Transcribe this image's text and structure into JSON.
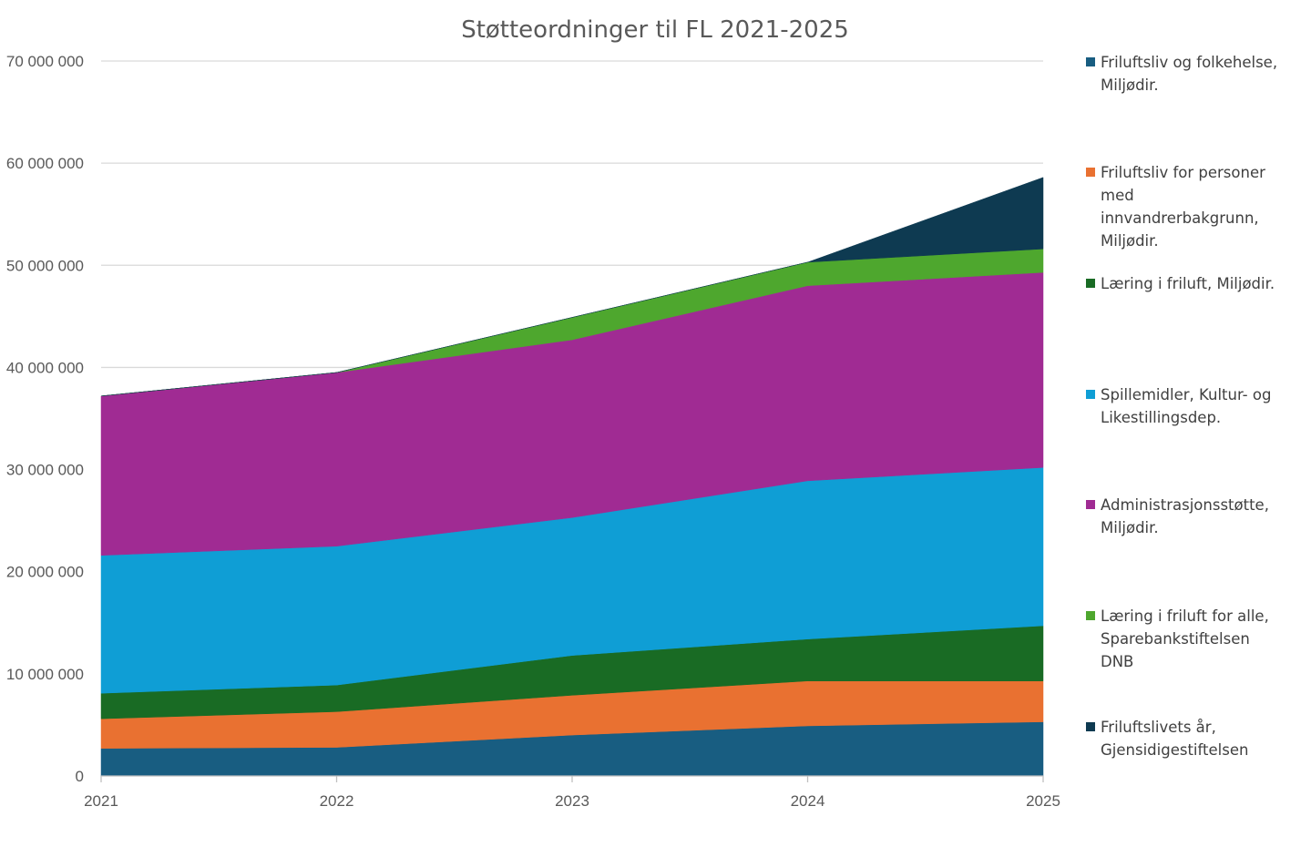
{
  "chart_data": {
    "type": "area",
    "stacked": true,
    "title": "Støtteordninger til FL 2021-2025",
    "x": [
      "2021",
      "2022",
      "2023",
      "2024",
      "2025"
    ],
    "ylim": [
      0,
      70000000
    ],
    "yticks": [
      0,
      10000000,
      20000000,
      30000000,
      40000000,
      50000000,
      60000000,
      70000000
    ],
    "ytick_labels": [
      "0",
      "10 000 000",
      "20 000 000",
      "30 000 000",
      "40 000 000",
      "50 000 000",
      "60 000 000",
      "70 000 000"
    ],
    "grid": true,
    "legend_position": "right",
    "series": [
      {
        "name": "Friluftsliv og folkehelse, Miljødir.",
        "color": "#185d81",
        "values": [
          2700000,
          2800000,
          4000000,
          4900000,
          5300000
        ]
      },
      {
        "name": "Friluftsliv for personer med innvandrerbakgrunn, Miljødir.",
        "color": "#e97131",
        "values": [
          2900000,
          3500000,
          3900000,
          4400000,
          4000000
        ]
      },
      {
        "name": "Læring i friluft, Miljødir.",
        "color": "#196b24",
        "values": [
          2500000,
          2600000,
          3900000,
          4100000,
          5400000
        ]
      },
      {
        "name": "Spillemidler, Kultur- og Likestillingsdep.",
        "color": "#0f9ed5",
        "values": [
          13500000,
          13600000,
          13500000,
          15500000,
          15500000
        ]
      },
      {
        "name": "Administrasjonsstøtte, Miljødir.",
        "color": "#a02b93",
        "values": [
          15600000,
          17000000,
          17400000,
          19100000,
          19100000
        ]
      },
      {
        "name": "Læring i friluft for alle, Sparebankstiftelsen DNB",
        "color": "#4ea72e",
        "values": [
          0,
          0,
          2200000,
          2300000,
          2300000
        ]
      },
      {
        "name": "Friluftslivets år, Gjensidigestiftelsen",
        "color": "#0e3a51",
        "values": [
          0,
          0,
          0,
          0,
          7000000
        ]
      }
    ]
  }
}
